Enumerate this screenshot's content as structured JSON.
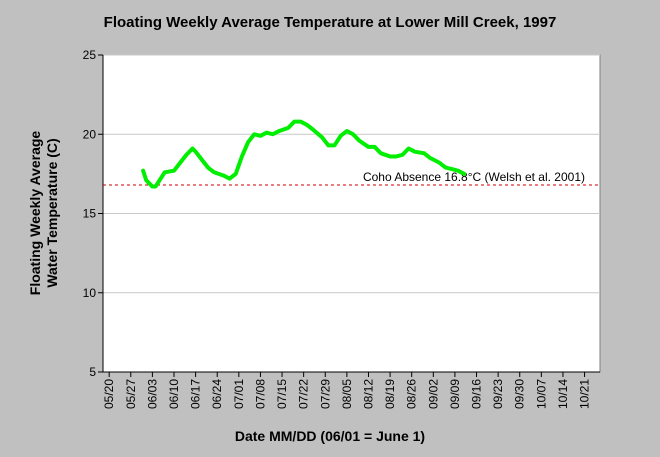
{
  "chart_data": {
    "type": "line",
    "title": "Floating Weekly Average Temperature at Lower Mill Creek, 1997",
    "xlabel": "Date MM/DD (06/01 = June 1)",
    "ylabel": [
      "Floating Weekly Average",
      "Water Temperature (C)"
    ],
    "x": [
      151,
      152,
      154,
      155,
      157,
      158,
      161,
      163,
      165,
      167,
      168,
      170,
      172,
      174,
      177,
      179,
      181,
      183,
      185,
      187,
      189,
      191,
      193,
      195,
      198,
      200,
      202,
      204,
      206,
      209,
      211,
      213,
      215,
      217,
      219,
      221,
      224,
      226,
      228,
      231,
      233,
      235,
      237,
      239,
      242,
      244,
      247,
      249,
      251,
      253,
      255
    ],
    "series": [
      {
        "name": "Floating Weekly Average",
        "color": "#00ee00",
        "values": [
          17.7,
          17.1,
          16.7,
          16.7,
          17.3,
          17.6,
          17.7,
          18.2,
          18.7,
          19.1,
          18.9,
          18.4,
          17.9,
          17.6,
          17.4,
          17.2,
          17.5,
          18.6,
          19.5,
          20.0,
          19.9,
          20.1,
          20.0,
          20.2,
          20.4,
          20.8,
          20.8,
          20.6,
          20.3,
          19.8,
          19.3,
          19.3,
          19.9,
          20.2,
          20.0,
          19.6,
          19.2,
          19.2,
          18.8,
          18.6,
          18.6,
          18.7,
          19.1,
          18.9,
          18.8,
          18.5,
          18.2,
          17.9,
          17.8,
          17.7,
          17.5
        ]
      }
    ],
    "reference_line": {
      "value": 16.8,
      "label": "Coho Absence 16.8°C (Welsh et al. 2001)",
      "color": "#cc0000"
    },
    "xlim": [
      138,
      299
    ],
    "xticks": [
      {
        "value": 140,
        "label": "05/20"
      },
      {
        "value": 147,
        "label": "05/27"
      },
      {
        "value": 154,
        "label": "06/03"
      },
      {
        "value": 161,
        "label": "06/10"
      },
      {
        "value": 168,
        "label": "06/17"
      },
      {
        "value": 175,
        "label": "06/24"
      },
      {
        "value": 182,
        "label": "07/01"
      },
      {
        "value": 189,
        "label": "07/08"
      },
      {
        "value": 196,
        "label": "07/15"
      },
      {
        "value": 203,
        "label": "07/22"
      },
      {
        "value": 210,
        "label": "07/29"
      },
      {
        "value": 217,
        "label": "08/05"
      },
      {
        "value": 224,
        "label": "08/12"
      },
      {
        "value": 231,
        "label": "08/19"
      },
      {
        "value": 238,
        "label": "08/26"
      },
      {
        "value": 245,
        "label": "09/02"
      },
      {
        "value": 252,
        "label": "09/09"
      },
      {
        "value": 259,
        "label": "09/16"
      },
      {
        "value": 266,
        "label": "09/23"
      },
      {
        "value": 273,
        "label": "09/30"
      },
      {
        "value": 280,
        "label": "10/07"
      },
      {
        "value": 287,
        "label": "10/14"
      },
      {
        "value": 294,
        "label": "10/21"
      }
    ],
    "ylim": [
      5,
      25
    ],
    "yticks": [
      5,
      10,
      15,
      20,
      25
    ],
    "grid": true
  }
}
